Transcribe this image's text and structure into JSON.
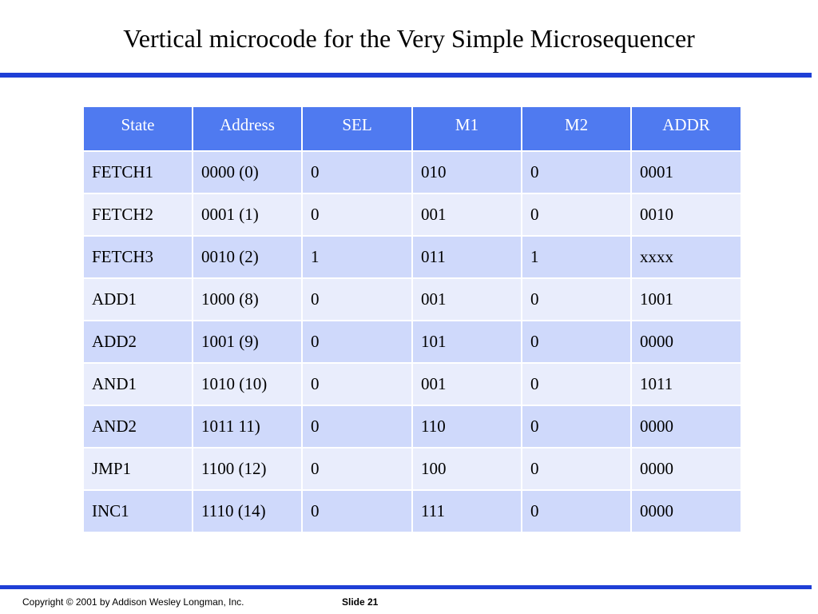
{
  "slide": {
    "title": "Vertical microcode for the Very Simple Microsequencer",
    "footer_copyright": "Copyright © 2001 by Addison Wesley Longman, Inc.",
    "footer_slide": "Slide 21"
  },
  "colors": {
    "accent_rule": "#1f3fd6",
    "header_bg": "#4f7af0",
    "row_odd_bg": "#cfd9fb",
    "row_even_bg": "#e9edfc"
  },
  "table": {
    "headers": [
      "State",
      "Address",
      "SEL",
      "M1",
      "M2",
      "ADDR"
    ],
    "rows": [
      [
        "FETCH1",
        "0000 (0)",
        "0",
        "010",
        "0",
        "0001"
      ],
      [
        "FETCH2",
        "0001 (1)",
        "0",
        "001",
        "0",
        "0010"
      ],
      [
        "FETCH3",
        "0010 (2)",
        "1",
        "011",
        "1",
        "xxxx"
      ],
      [
        "ADD1",
        "1000 (8)",
        "0",
        "001",
        "0",
        "1001"
      ],
      [
        "ADD2",
        "1001 (9)",
        "0",
        "101",
        "0",
        "0000"
      ],
      [
        "AND1",
        "1010 (10)",
        "0",
        "001",
        "0",
        "1011"
      ],
      [
        "AND2",
        "1011 11)",
        "0",
        "110",
        "0",
        "0000"
      ],
      [
        "JMP1",
        "1100 (12)",
        "0",
        "100",
        "0",
        "0000"
      ],
      [
        "INC1",
        "1110 (14)",
        "0",
        "111",
        "0",
        "0000"
      ]
    ]
  }
}
